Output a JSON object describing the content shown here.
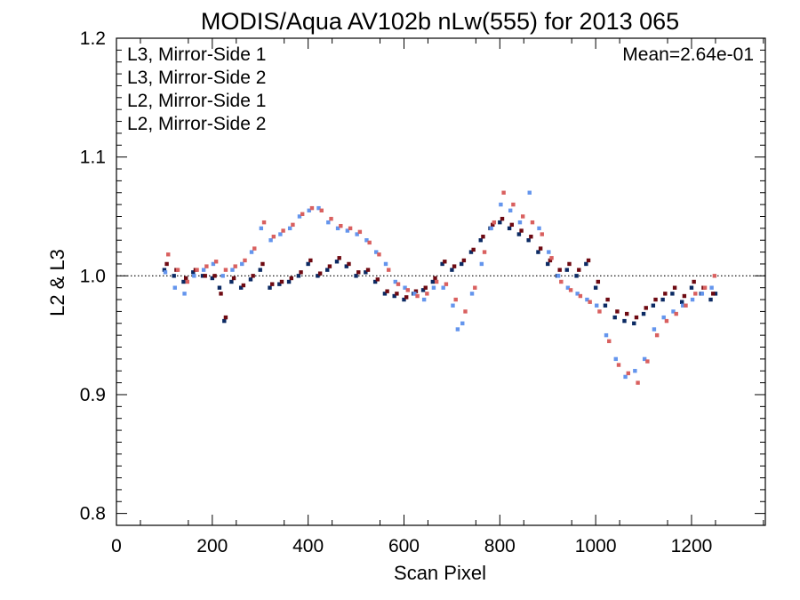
{
  "chart_data": {
    "type": "scatter",
    "title": "MODIS/Aqua AV102b nLw(555) for 2013 065",
    "xlabel": "Scan Pixel",
    "ylabel": "L2 & L3",
    "xlim": [
      0,
      1354
    ],
    "ylim": [
      0.79,
      1.2
    ],
    "x_ticks": [
      0,
      200,
      400,
      600,
      800,
      1000,
      1200
    ],
    "x_tick_labels": [
      "0",
      "200",
      "400",
      "600",
      "800",
      "1000",
      "1200"
    ],
    "y_ticks": [
      0.8,
      0.9,
      1.0,
      1.1,
      1.2
    ],
    "y_tick_labels": [
      "0.8",
      "0.9",
      "1.0",
      "1.1",
      "1.2"
    ],
    "reference_line": 1.0,
    "annotation": "Mean=2.64e-01",
    "legend_position": "top-left",
    "series": [
      {
        "name": "L3, Mirror-Side 1",
        "color": "#0b2a63",
        "points": [
          [
            100,
            1.005
          ],
          [
            120,
            1.0
          ],
          [
            140,
            0.995
          ],
          [
            160,
            1.003
          ],
          [
            180,
            1.0
          ],
          [
            200,
            0.998
          ],
          [
            215,
            0.99
          ],
          [
            225,
            0.962
          ],
          [
            240,
            0.995
          ],
          [
            260,
            0.99
          ],
          [
            280,
            0.997
          ],
          [
            300,
            1.005
          ],
          [
            320,
            0.99
          ],
          [
            340,
            0.993
          ],
          [
            360,
            0.995
          ],
          [
            380,
            1.0
          ],
          [
            400,
            1.01
          ],
          [
            420,
            1.0
          ],
          [
            440,
            1.005
          ],
          [
            460,
            1.012
          ],
          [
            480,
            1.008
          ],
          [
            500,
            1.0
          ],
          [
            520,
            1.003
          ],
          [
            540,
            0.995
          ],
          [
            560,
            0.985
          ],
          [
            580,
            0.983
          ],
          [
            600,
            0.98
          ],
          [
            620,
            0.985
          ],
          [
            640,
            0.988
          ],
          [
            660,
            0.995
          ],
          [
            680,
            1.01
          ],
          [
            700,
            1.005
          ],
          [
            720,
            1.01
          ],
          [
            740,
            1.02
          ],
          [
            760,
            1.03
          ],
          [
            780,
            1.04
          ],
          [
            800,
            1.045
          ],
          [
            820,
            1.04
          ],
          [
            840,
            1.035
          ],
          [
            860,
            1.03
          ],
          [
            880,
            1.02
          ],
          [
            900,
            1.01
          ],
          [
            920,
            1.0
          ],
          [
            940,
            1.005
          ],
          [
            960,
            1.0
          ],
          [
            980,
            1.01
          ],
          [
            1000,
            0.99
          ],
          [
            1020,
            0.975
          ],
          [
            1040,
            0.965
          ],
          [
            1060,
            0.962
          ],
          [
            1080,
            0.96
          ],
          [
            1100,
            0.968
          ],
          [
            1120,
            0.975
          ],
          [
            1140,
            0.98
          ],
          [
            1160,
            0.985
          ],
          [
            1180,
            0.978
          ],
          [
            1200,
            0.99
          ],
          [
            1220,
            0.985
          ],
          [
            1240,
            0.98
          ],
          [
            1250,
            0.985
          ]
        ]
      },
      {
        "name": "L3, Mirror-Side 2",
        "color": "#6e0a12",
        "points": [
          [
            105,
            1.01
          ],
          [
            125,
            1.005
          ],
          [
            145,
            0.998
          ],
          [
            165,
            1.005
          ],
          [
            185,
            1.0
          ],
          [
            205,
            1.0
          ],
          [
            218,
            0.985
          ],
          [
            228,
            0.965
          ],
          [
            245,
            0.998
          ],
          [
            265,
            0.992
          ],
          [
            285,
            1.0
          ],
          [
            305,
            1.01
          ],
          [
            325,
            0.993
          ],
          [
            345,
            0.995
          ],
          [
            365,
            0.998
          ],
          [
            385,
            1.003
          ],
          [
            405,
            1.013
          ],
          [
            425,
            1.002
          ],
          [
            445,
            1.008
          ],
          [
            465,
            1.015
          ],
          [
            485,
            1.01
          ],
          [
            505,
            1.003
          ],
          [
            525,
            1.005
          ],
          [
            545,
            0.997
          ],
          [
            565,
            0.987
          ],
          [
            585,
            0.985
          ],
          [
            605,
            0.982
          ],
          [
            625,
            0.987
          ],
          [
            645,
            0.99
          ],
          [
            665,
            0.998
          ],
          [
            685,
            1.012
          ],
          [
            705,
            1.008
          ],
          [
            725,
            1.013
          ],
          [
            745,
            1.022
          ],
          [
            765,
            1.033
          ],
          [
            785,
            1.043
          ],
          [
            805,
            1.048
          ],
          [
            825,
            1.043
          ],
          [
            845,
            1.038
          ],
          [
            865,
            1.033
          ],
          [
            885,
            1.023
          ],
          [
            905,
            1.013
          ],
          [
            925,
            1.005
          ],
          [
            945,
            1.01
          ],
          [
            965,
            1.005
          ],
          [
            985,
            1.013
          ],
          [
            1005,
            0.995
          ],
          [
            1025,
            0.98
          ],
          [
            1045,
            0.97
          ],
          [
            1065,
            0.968
          ],
          [
            1085,
            0.965
          ],
          [
            1105,
            0.973
          ],
          [
            1125,
            0.98
          ],
          [
            1145,
            0.985
          ],
          [
            1165,
            0.99
          ],
          [
            1185,
            0.983
          ],
          [
            1205,
            0.995
          ],
          [
            1225,
            0.99
          ],
          [
            1245,
            0.985
          ]
        ]
      },
      {
        "name": "L2, Mirror-Side 1",
        "color": "#6495ed",
        "points": [
          [
            102,
            1.003
          ],
          [
            122,
            0.99
          ],
          [
            142,
            0.985
          ],
          [
            162,
            1.0
          ],
          [
            182,
            1.005
          ],
          [
            202,
            1.01
          ],
          [
            222,
            1.0
          ],
          [
            242,
            1.005
          ],
          [
            262,
            1.01
          ],
          [
            282,
            1.02
          ],
          [
            302,
            1.04
          ],
          [
            322,
            1.03
          ],
          [
            342,
            1.035
          ],
          [
            362,
            1.04
          ],
          [
            382,
            1.05
          ],
          [
            402,
            1.055
          ],
          [
            422,
            1.057
          ],
          [
            442,
            1.045
          ],
          [
            462,
            1.04
          ],
          [
            482,
            1.038
          ],
          [
            502,
            1.035
          ],
          [
            522,
            1.03
          ],
          [
            542,
            1.02
          ],
          [
            562,
            1.01
          ],
          [
            582,
            0.995
          ],
          [
            602,
            0.99
          ],
          [
            622,
            0.985
          ],
          [
            642,
            0.98
          ],
          [
            662,
            0.99
          ],
          [
            682,
            0.99
          ],
          [
            702,
            0.975
          ],
          [
            712,
            0.955
          ],
          [
            722,
            0.96
          ],
          [
            742,
            0.985
          ],
          [
            762,
            1.01
          ],
          [
            782,
            1.04
          ],
          [
            802,
            1.06
          ],
          [
            822,
            1.055
          ],
          [
            842,
            1.045
          ],
          [
            862,
            1.07
          ],
          [
            882,
            1.04
          ],
          [
            902,
            1.02
          ],
          [
            922,
            1.0
          ],
          [
            942,
            0.99
          ],
          [
            962,
            0.985
          ],
          [
            982,
            0.98
          ],
          [
            1002,
            0.975
          ],
          [
            1022,
            0.95
          ],
          [
            1042,
            0.93
          ],
          [
            1062,
            0.915
          ],
          [
            1082,
            0.92
          ],
          [
            1102,
            0.93
          ],
          [
            1122,
            0.955
          ],
          [
            1142,
            0.965
          ],
          [
            1162,
            0.97
          ],
          [
            1182,
            0.975
          ],
          [
            1202,
            0.98
          ],
          [
            1222,
            0.985
          ],
          [
            1242,
            0.99
          ]
        ]
      },
      {
        "name": "L2, Mirror-Side 2",
        "color": "#d9605f",
        "points": [
          [
            108,
            1.018
          ],
          [
            128,
            1.005
          ],
          [
            148,
            0.995
          ],
          [
            168,
            1.005
          ],
          [
            188,
            1.008
          ],
          [
            208,
            1.012
          ],
          [
            228,
            1.005
          ],
          [
            248,
            1.008
          ],
          [
            268,
            1.013
          ],
          [
            288,
            1.023
          ],
          [
            308,
            1.045
          ],
          [
            328,
            1.033
          ],
          [
            348,
            1.038
          ],
          [
            368,
            1.043
          ],
          [
            388,
            1.052
          ],
          [
            408,
            1.057
          ],
          [
            428,
            1.055
          ],
          [
            448,
            1.048
          ],
          [
            468,
            1.042
          ],
          [
            488,
            1.04
          ],
          [
            508,
            1.037
          ],
          [
            528,
            1.028
          ],
          [
            548,
            1.018
          ],
          [
            568,
            1.005
          ],
          [
            588,
            0.993
          ],
          [
            608,
            0.988
          ],
          [
            628,
            0.983
          ],
          [
            648,
            0.985
          ],
          [
            668,
            0.995
          ],
          [
            688,
            0.993
          ],
          [
            708,
            0.98
          ],
          [
            728,
            0.97
          ],
          [
            748,
            0.99
          ],
          [
            768,
            1.02
          ],
          [
            788,
            1.045
          ],
          [
            808,
            1.07
          ],
          [
            828,
            1.06
          ],
          [
            848,
            1.05
          ],
          [
            868,
            1.045
          ],
          [
            888,
            1.035
          ],
          [
            908,
            1.015
          ],
          [
            928,
            0.995
          ],
          [
            948,
            0.988
          ],
          [
            968,
            0.983
          ],
          [
            988,
            0.978
          ],
          [
            1008,
            0.97
          ],
          [
            1028,
            0.945
          ],
          [
            1048,
            0.925
          ],
          [
            1068,
            0.918
          ],
          [
            1088,
            0.91
          ],
          [
            1108,
            0.928
          ],
          [
            1128,
            0.95
          ],
          [
            1148,
            0.962
          ],
          [
            1168,
            0.968
          ],
          [
            1188,
            0.975
          ],
          [
            1208,
            0.985
          ],
          [
            1228,
            0.99
          ],
          [
            1248,
            1.0
          ]
        ]
      }
    ]
  }
}
